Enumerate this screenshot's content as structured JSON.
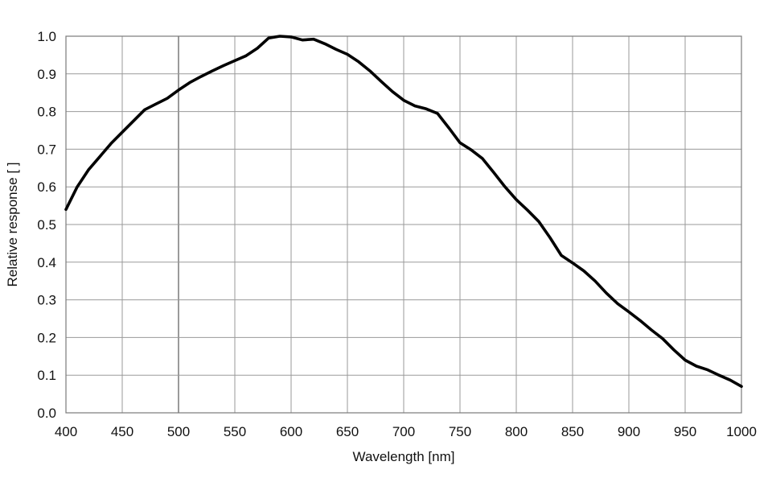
{
  "chart_data": {
    "type": "line",
    "title": "",
    "xlabel": "Wavelength [nm]",
    "ylabel": "Relative response [ ]",
    "xlim": [
      400,
      1000
    ],
    "ylim": [
      0.0,
      1.0
    ],
    "grid": true,
    "legend": "none",
    "xticks": [
      400,
      450,
      500,
      550,
      600,
      650,
      700,
      750,
      800,
      850,
      900,
      950,
      1000
    ],
    "yticks": [
      0.0,
      0.1,
      0.2,
      0.3,
      0.4,
      0.5,
      0.6,
      0.7,
      0.8,
      0.9,
      1.0
    ],
    "xtick_labels": [
      "400",
      "450",
      "500",
      "550",
      "600",
      "650",
      "700",
      "750",
      "800",
      "850",
      "900",
      "950",
      "1000"
    ],
    "ytick_labels": [
      "0.0",
      "0.1",
      "0.2",
      "0.3",
      "0.4",
      "0.5",
      "0.6",
      "0.7",
      "0.8",
      "0.9",
      "1.0"
    ],
    "colors": {
      "line": "#000000",
      "grid": "#9a9a9a",
      "frame": "#7a7a7a"
    },
    "series": [
      {
        "x": [
          400,
          410,
          420,
          430,
          440,
          450,
          460,
          470,
          480,
          490,
          500,
          510,
          520,
          530,
          540,
          550,
          560,
          570,
          580,
          590,
          600,
          610,
          620,
          630,
          640,
          650,
          660,
          670,
          680,
          690,
          700,
          710,
          720,
          730,
          740,
          750,
          760,
          770,
          780,
          790,
          800,
          810,
          820,
          830,
          840,
          850,
          860,
          870,
          880,
          890,
          900,
          910,
          920,
          930,
          940,
          950,
          960,
          970,
          980,
          990,
          1000
        ],
        "y": [
          0.54,
          0.6,
          0.645,
          0.68,
          0.715,
          0.745,
          0.775,
          0.805,
          0.82,
          0.835,
          0.857,
          0.877,
          0.893,
          0.908,
          0.922,
          0.935,
          0.948,
          0.968,
          0.995,
          1.0,
          0.998,
          0.99,
          0.992,
          0.98,
          0.965,
          0.952,
          0.932,
          0.908,
          0.88,
          0.853,
          0.83,
          0.815,
          0.807,
          0.795,
          0.757,
          0.717,
          0.698,
          0.675,
          0.638,
          0.6,
          0.566,
          0.538,
          0.508,
          0.465,
          0.418,
          0.398,
          0.377,
          0.35,
          0.318,
          0.29,
          0.268,
          0.245,
          0.22,
          0.197,
          0.167,
          0.14,
          0.124,
          0.114,
          0.1,
          0.087,
          0.07
        ]
      }
    ]
  }
}
